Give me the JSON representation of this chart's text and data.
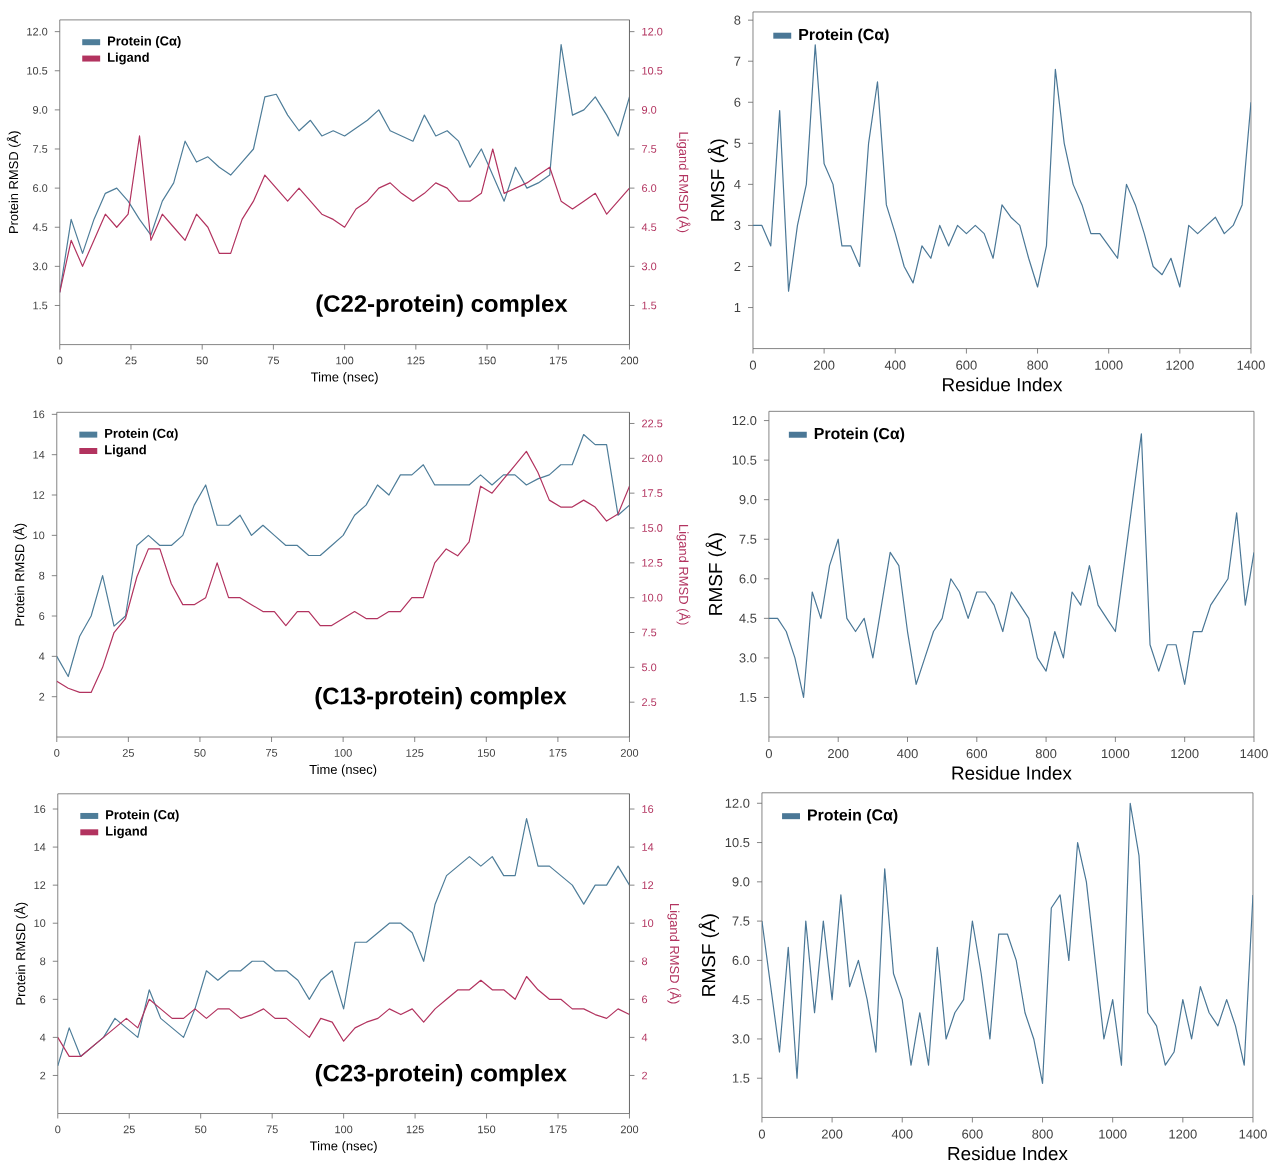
{
  "chart_data": [
    {
      "type": "line",
      "xlabel": "Time (nsec)",
      "ylabel": "Protein RMSD (Å)",
      "y2label": "Ligand RMSD (Å)",
      "legend": "top left",
      "annotations": [
        "(C22-protein) complex"
      ],
      "xlim": [
        0,
        200
      ],
      "xticks": [
        0,
        25,
        50,
        75,
        100,
        125,
        150,
        175,
        200
      ],
      "ylim": [
        0,
        12.45
      ],
      "yticks": [
        {
          "value": 1.5,
          "label": "1.5"
        },
        {
          "value": 3,
          "label": "3.0"
        },
        {
          "value": 4.5,
          "label": "4.5"
        },
        {
          "value": 6,
          "label": "6.0"
        },
        {
          "value": 7.5,
          "label": "7.5"
        },
        {
          "value": 9,
          "label": "9.0"
        },
        {
          "value": 10.5,
          "label": "10.5"
        },
        {
          "value": 12,
          "label": "12.0"
        }
      ],
      "y2lim": [
        0,
        12.45
      ],
      "y2ticks": [
        {
          "value": 1.5,
          "label": "1.5"
        },
        {
          "value": 3,
          "label": "3.0"
        },
        {
          "value": 4.5,
          "label": "4.5"
        },
        {
          "value": 6,
          "label": "6.0"
        },
        {
          "value": 7.5,
          "label": "7.5"
        },
        {
          "value": 9,
          "label": "9.0"
        },
        {
          "value": 10.5,
          "label": "10.5"
        },
        {
          "value": 12,
          "label": "12.0"
        }
      ],
      "x": [
        0,
        4,
        8,
        12,
        16,
        20,
        24,
        28,
        32,
        36,
        40,
        44,
        48,
        52,
        56,
        60,
        64,
        68,
        72,
        76,
        80,
        84,
        88,
        92,
        96,
        100,
        104,
        108,
        112,
        116,
        120,
        124,
        128,
        132,
        136,
        140,
        144,
        148,
        152,
        156,
        160,
        164,
        168,
        172,
        176,
        180,
        184,
        188,
        192,
        196,
        200
      ],
      "series": [
        {
          "name": "Protein (Cα)",
          "color": "#4e7d99",
          "values": [
            2.0,
            4.8,
            3.5,
            4.8,
            5.8,
            6.0,
            5.5,
            4.8,
            4.2,
            5.5,
            6.2,
            7.8,
            7.0,
            7.2,
            6.8,
            6.5,
            7.0,
            7.5,
            9.5,
            9.6,
            8.8,
            8.2,
            8.6,
            8.0,
            8.2,
            8.0,
            8.3,
            8.6,
            9.0,
            8.2,
            8.0,
            7.8,
            8.8,
            8.0,
            8.2,
            7.8,
            6.8,
            7.5,
            6.5,
            5.5,
            6.8,
            6.0,
            6.2,
            6.5,
            11.5,
            8.8,
            9.0,
            9.5,
            8.8,
            8.0,
            9.5
          ]
        },
        {
          "name": "Ligand",
          "color": "#b2335f",
          "axis": "y2",
          "values": [
            2.0,
            4.0,
            3.0,
            4.0,
            5.0,
            4.5,
            5.0,
            8.0,
            4.0,
            5.0,
            4.5,
            4.0,
            5.0,
            4.5,
            3.5,
            3.5,
            4.8,
            5.5,
            6.5,
            6.0,
            5.5,
            6.0,
            5.5,
            5.0,
            4.8,
            4.5,
            5.2,
            5.5,
            6.0,
            6.2,
            5.8,
            5.5,
            5.8,
            6.2,
            6.0,
            5.5,
            5.5,
            5.8,
            7.5,
            5.8,
            6.0,
            6.2,
            6.5,
            6.8,
            5.5,
            5.2,
            5.5,
            5.8,
            5.0,
            5.5,
            6.0
          ]
        }
      ]
    },
    {
      "type": "line",
      "xlabel": "Residue Index",
      "ylabel": "RMSF (Å)",
      "legend": "top left",
      "xlim": [
        0,
        1400
      ],
      "xticks": [
        0,
        200,
        400,
        600,
        800,
        1000,
        1200,
        1400
      ],
      "ylim": [
        0,
        8.2
      ],
      "yticks": [
        1,
        2,
        3,
        4,
        5,
        6,
        7,
        8
      ],
      "x": [
        0,
        25,
        50,
        75,
        100,
        125,
        150,
        175,
        200,
        225,
        250,
        275,
        300,
        325,
        350,
        375,
        400,
        425,
        450,
        475,
        500,
        525,
        550,
        575,
        600,
        625,
        650,
        675,
        700,
        725,
        750,
        775,
        800,
        825,
        850,
        875,
        900,
        925,
        950,
        975,
        1000,
        1025,
        1050,
        1075,
        1100,
        1125,
        1150,
        1175,
        1200,
        1225,
        1250,
        1275,
        1300,
        1325,
        1350,
        1375,
        1400
      ],
      "series": [
        {
          "name": "Protein (Cα)",
          "color": "#4a7796",
          "values": [
            3.0,
            3.0,
            2.5,
            5.8,
            1.4,
            3.0,
            4.0,
            7.4,
            4.5,
            4.0,
            2.5,
            2.5,
            2.0,
            5.0,
            6.5,
            3.5,
            2.8,
            2.0,
            1.6,
            2.5,
            2.2,
            3.0,
            2.5,
            3.0,
            2.8,
            3.0,
            2.8,
            2.2,
            3.5,
            3.2,
            3.0,
            2.2,
            1.5,
            2.5,
            6.8,
            5.0,
            4.0,
            3.5,
            2.8,
            2.8,
            2.5,
            2.2,
            4.0,
            3.5,
            2.8,
            2.0,
            1.8,
            2.2,
            1.5,
            3.0,
            2.8,
            3.0,
            3.2,
            2.8,
            3.0,
            3.5,
            6.0
          ]
        }
      ]
    },
    {
      "type": "line",
      "xlabel": "Time (nsec)",
      "ylabel": "Protein RMSD (Å)",
      "y2label": "Ligand RMSD (Å)",
      "legend": "top left",
      "annotations": [
        "(C13-protein) complex"
      ],
      "xlim": [
        0,
        200
      ],
      "xticks": [
        0,
        25,
        50,
        75,
        100,
        125,
        150,
        175,
        200
      ],
      "ylim": [
        0,
        16.1
      ],
      "yticks": [
        2,
        4,
        6,
        8,
        10,
        12,
        14,
        16
      ],
      "y2lim": [
        0,
        23.3
      ],
      "y2ticks": [
        {
          "value": 2.5,
          "label": "2.5"
        },
        {
          "value": 5,
          "label": "5.0"
        },
        {
          "value": 7.5,
          "label": "7.5"
        },
        {
          "value": 10,
          "label": "10.0"
        },
        {
          "value": 12.5,
          "label": "12.5"
        },
        {
          "value": 15,
          "label": "15.0"
        },
        {
          "value": 17.5,
          "label": "17.5"
        },
        {
          "value": 20,
          "label": "20.0"
        },
        {
          "value": 22.5,
          "label": "22.5"
        }
      ],
      "x": [
        0,
        4,
        8,
        12,
        16,
        20,
        24,
        28,
        32,
        36,
        40,
        44,
        48,
        52,
        56,
        60,
        64,
        68,
        72,
        76,
        80,
        84,
        88,
        92,
        96,
        100,
        104,
        108,
        112,
        116,
        120,
        124,
        128,
        132,
        136,
        140,
        144,
        148,
        152,
        156,
        160,
        164,
        168,
        172,
        176,
        180,
        184,
        188,
        192,
        196,
        200
      ],
      "series": [
        {
          "name": "Protein (Cα)",
          "color": "#4e7d99",
          "values": [
            4.0,
            3.0,
            5.0,
            6.0,
            8.0,
            5.5,
            6.0,
            9.5,
            10.0,
            9.5,
            9.5,
            10.0,
            11.5,
            12.5,
            10.5,
            10.5,
            11.0,
            10.0,
            10.5,
            10.0,
            9.5,
            9.5,
            9.0,
            9.0,
            9.5,
            10.0,
            11.0,
            11.5,
            12.5,
            12.0,
            13.0,
            13.0,
            13.5,
            12.5,
            12.5,
            12.5,
            12.5,
            13.0,
            12.5,
            13.0,
            13.0,
            12.5,
            12.8,
            13.0,
            13.5,
            13.5,
            15.0,
            14.5,
            14.5,
            11.0,
            11.5
          ]
        },
        {
          "name": "Ligand",
          "color": "#b2335f",
          "axis": "y2",
          "values": [
            4.0,
            3.5,
            3.2,
            3.2,
            5.0,
            7.5,
            8.5,
            11.5,
            13.5,
            13.5,
            11.0,
            9.5,
            9.5,
            10.0,
            12.5,
            10.0,
            10.0,
            9.5,
            9.0,
            9.0,
            8.0,
            9.0,
            9.0,
            8.0,
            8.0,
            8.5,
            9.0,
            8.5,
            8.5,
            9.0,
            9.0,
            10.0,
            10.0,
            12.5,
            13.5,
            13.0,
            14.0,
            18.0,
            17.5,
            18.5,
            19.5,
            20.5,
            19.0,
            17.0,
            16.5,
            16.5,
            17.0,
            16.5,
            15.5,
            16.0,
            18.0
          ]
        }
      ]
    },
    {
      "type": "line",
      "xlabel": "Residue Index",
      "ylabel": "RMSF (Å)",
      "legend": "top left",
      "xlim": [
        0,
        1400
      ],
      "xticks": [
        0,
        200,
        400,
        600,
        800,
        1000,
        1200,
        1400
      ],
      "ylim": [
        0,
        12.35
      ],
      "yticks": [
        {
          "value": 1.5,
          "label": "1.5"
        },
        {
          "value": 3,
          "label": "3.0"
        },
        {
          "value": 4.5,
          "label": "4.5"
        },
        {
          "value": 6,
          "label": "6.0"
        },
        {
          "value": 7.5,
          "label": "7.5"
        },
        {
          "value": 9,
          "label": "9.0"
        },
        {
          "value": 10.5,
          "label": "10.5"
        },
        {
          "value": 12,
          "label": "12.0"
        }
      ],
      "x": [
        0,
        25,
        50,
        75,
        100,
        125,
        150,
        175,
        200,
        225,
        250,
        275,
        300,
        325,
        350,
        375,
        400,
        425,
        450,
        475,
        500,
        525,
        550,
        575,
        600,
        625,
        650,
        675,
        700,
        725,
        750,
        775,
        800,
        825,
        850,
        875,
        900,
        925,
        950,
        975,
        1000,
        1025,
        1050,
        1075,
        1100,
        1125,
        1150,
        1175,
        1200,
        1225,
        1250,
        1275,
        1300,
        1325,
        1350,
        1375,
        1400
      ],
      "series": [
        {
          "name": "Protein (Cα)",
          "color": "#4a7796",
          "values": [
            4.5,
            4.5,
            4.0,
            3.0,
            1.5,
            5.5,
            4.5,
            6.5,
            7.5,
            4.5,
            4.0,
            4.5,
            3.0,
            5.0,
            7.0,
            6.5,
            4.0,
            2.0,
            3.0,
            4.0,
            4.5,
            6.0,
            5.5,
            4.5,
            5.5,
            5.5,
            5.0,
            4.0,
            5.5,
            5.0,
            4.5,
            3.0,
            2.5,
            4.0,
            3.0,
            5.5,
            5.0,
            6.5,
            5.0,
            4.5,
            4.0,
            6.5,
            9.0,
            11.5,
            3.5,
            2.5,
            3.5,
            3.5,
            2.0,
            4.0,
            4.0,
            5.0,
            5.5,
            6.0,
            8.5,
            5.0,
            7.0
          ]
        }
      ]
    },
    {
      "type": "line",
      "xlabel": "Time (nsec)",
      "ylabel": "Protein RMSD (Å)",
      "y2label": "Ligand RMSD (Å)",
      "legend": "top left",
      "annotations": [
        "(C23-protein) complex"
      ],
      "xlim": [
        0,
        200
      ],
      "xticks": [
        0,
        25,
        50,
        75,
        100,
        125,
        150,
        175,
        200
      ],
      "ylim": [
        0,
        16.8
      ],
      "yticks": [
        2,
        4,
        6,
        8,
        10,
        12,
        14,
        16
      ],
      "y2lim": [
        0,
        16.8
      ],
      "y2ticks": [
        2,
        4,
        6,
        8,
        10,
        12,
        14,
        16
      ],
      "x": [
        0,
        4,
        8,
        12,
        16,
        20,
        24,
        28,
        32,
        36,
        40,
        44,
        48,
        52,
        56,
        60,
        64,
        68,
        72,
        76,
        80,
        84,
        88,
        92,
        96,
        100,
        104,
        108,
        112,
        116,
        120,
        124,
        128,
        132,
        136,
        140,
        144,
        148,
        152,
        156,
        160,
        164,
        168,
        172,
        176,
        180,
        184,
        188,
        192,
        196,
        200
      ],
      "series": [
        {
          "name": "Protein (Cα)",
          "color": "#4e7d99",
          "values": [
            2.5,
            4.5,
            3.0,
            3.5,
            4.0,
            5.0,
            4.5,
            4.0,
            6.5,
            5.0,
            4.5,
            4.0,
            5.5,
            7.5,
            7.0,
            7.5,
            7.5,
            8.0,
            8.0,
            7.5,
            7.5,
            7.0,
            6.0,
            7.0,
            7.5,
            5.5,
            9.0,
            9.0,
            9.5,
            10.0,
            10.0,
            9.5,
            8.0,
            11.0,
            12.5,
            13.0,
            13.5,
            13.0,
            13.5,
            12.5,
            12.5,
            15.5,
            13.0,
            13.0,
            12.5,
            12.0,
            11.0,
            12.0,
            12.0,
            13.0,
            12.0
          ]
        },
        {
          "name": "Ligand",
          "color": "#b2335f",
          "axis": "y2",
          "values": [
            4.0,
            3.0,
            3.0,
            3.5,
            4.0,
            4.5,
            5.0,
            4.5,
            6.0,
            5.5,
            5.0,
            5.0,
            5.5,
            5.0,
            5.5,
            5.5,
            5.0,
            5.2,
            5.5,
            5.0,
            5.0,
            4.5,
            4.0,
            5.0,
            4.8,
            3.8,
            4.5,
            4.8,
            5.0,
            5.5,
            5.2,
            5.5,
            4.8,
            5.5,
            6.0,
            6.5,
            6.5,
            7.0,
            6.5,
            6.5,
            6.0,
            7.2,
            6.5,
            6.0,
            6.0,
            5.5,
            5.5,
            5.2,
            5.0,
            5.5,
            5.2
          ]
        }
      ]
    },
    {
      "type": "line",
      "xlabel": "Residue Index",
      "ylabel": "RMSF (Å)",
      "legend": "top left",
      "xlim": [
        0,
        1400
      ],
      "xticks": [
        0,
        200,
        400,
        600,
        800,
        1000,
        1200,
        1400
      ],
      "ylim": [
        0,
        12.4
      ],
      "yticks": [
        {
          "value": 1.5,
          "label": "1.5"
        },
        {
          "value": 3,
          "label": "3.0"
        },
        {
          "value": 4.5,
          "label": "4.5"
        },
        {
          "value": 6,
          "label": "6.0"
        },
        {
          "value": 7.5,
          "label": "7.5"
        },
        {
          "value": 9,
          "label": "9.0"
        },
        {
          "value": 10.5,
          "label": "10.5"
        },
        {
          "value": 12,
          "label": "12.0"
        }
      ],
      "x": [
        0,
        25,
        50,
        75,
        100,
        125,
        150,
        175,
        200,
        225,
        250,
        275,
        300,
        325,
        350,
        375,
        400,
        425,
        450,
        475,
        500,
        525,
        550,
        575,
        600,
        625,
        650,
        675,
        700,
        725,
        750,
        775,
        800,
        825,
        850,
        875,
        900,
        925,
        950,
        975,
        1000,
        1025,
        1050,
        1075,
        1100,
        1125,
        1150,
        1175,
        1200,
        1225,
        1250,
        1275,
        1300,
        1325,
        1350,
        1375,
        1400
      ],
      "series": [
        {
          "name": "Protein (Cα)",
          "color": "#4a7796",
          "values": [
            7.5,
            5.0,
            2.5,
            6.5,
            1.5,
            7.5,
            4.0,
            7.5,
            4.5,
            8.5,
            5.0,
            6.0,
            4.5,
            2.5,
            9.5,
            5.5,
            4.5,
            2.0,
            4.0,
            2.0,
            6.5,
            3.0,
            4.0,
            4.5,
            7.5,
            5.5,
            3.0,
            7.0,
            7.0,
            6.0,
            4.0,
            3.0,
            1.3,
            8.0,
            8.5,
            6.0,
            10.5,
            9.0,
            6.0,
            3.0,
            4.5,
            2.0,
            12.0,
            10.0,
            4.0,
            3.5,
            2.0,
            2.5,
            4.5,
            3.0,
            5.0,
            4.0,
            3.5,
            4.5,
            3.5,
            2.0,
            8.5
          ]
        }
      ]
    }
  ]
}
